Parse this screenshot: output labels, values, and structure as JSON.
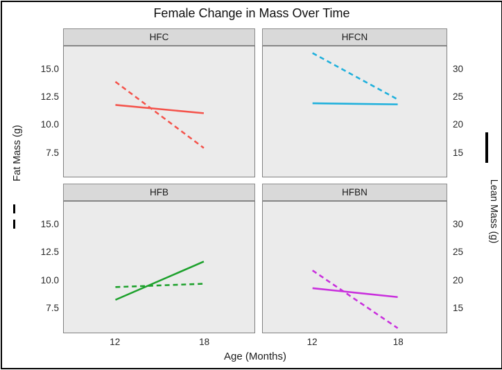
{
  "title": "Female Change in Mass Over Time",
  "axes": {
    "x": {
      "title": "Age (Months)",
      "tick_labels": [
        "12",
        "18"
      ],
      "tick_values": [
        12,
        18
      ]
    },
    "left": {
      "title": "Fat Mass (g)",
      "tick_labels": [
        "15.0",
        "12.5",
        "10.0",
        "7.5"
      ],
      "tick_values": [
        15.0,
        12.5,
        10.0,
        7.5
      ],
      "line_style": "dashed"
    },
    "right": {
      "title": "Lean Mass (g)",
      "tick_labels": [
        "30",
        "25",
        "20",
        "15"
      ],
      "tick_values": [
        30,
        25,
        20,
        15
      ],
      "line_style": "solid"
    }
  },
  "style": {
    "panel_bg": "#ebebeb",
    "strip_bg": "#d9d9d9",
    "outer_border": "#000000",
    "legend_glyph_color": "#000000"
  },
  "chart_data": {
    "type": "line",
    "title": "Female Change in Mass Over Time",
    "x": [
      12,
      18
    ],
    "xlabel": "Age (Months)",
    "ylabel_left": "Fat Mass (g)",
    "ylabel_right": "Lean Mass (g)",
    "left_axis_range": [
      5.3,
      17.1
    ],
    "right_axis_range": [
      10.6,
      34.2
    ],
    "right_axis_equals_left_times": 2,
    "grid": false,
    "legend": [
      {
        "name": "Fat Mass (g)",
        "style": "dashed",
        "position": "left-margin"
      },
      {
        "name": "Lean Mass (g)",
        "style": "solid",
        "position": "right-margin"
      }
    ],
    "facets": [
      {
        "label": "HFC",
        "color": "#f4534b",
        "series": [
          {
            "name": "Fat Mass (g)",
            "style": "dashed",
            "axis": "left",
            "values": [
              13.9,
              7.9
            ]
          },
          {
            "name": "Lean Mass (g)",
            "style": "solid",
            "axis": "right",
            "values": [
              23.6,
              22.1
            ]
          }
        ]
      },
      {
        "label": "HFCN",
        "color": "#1fb0dc",
        "series": [
          {
            "name": "Fat Mass (g)",
            "style": "dashed",
            "axis": "left",
            "values": [
              16.5,
              12.3
            ]
          },
          {
            "name": "Lean Mass (g)",
            "style": "solid",
            "axis": "right",
            "values": [
              23.9,
              23.7
            ]
          }
        ]
      },
      {
        "label": "HFB",
        "color": "#1da12c",
        "series": [
          {
            "name": "Fat Mass (g)",
            "style": "dashed",
            "axis": "left",
            "values": [
              9.4,
              9.7
            ]
          },
          {
            "name": "Lean Mass (g)",
            "style": "solid",
            "axis": "right",
            "values": [
              16.5,
              23.4
            ]
          }
        ]
      },
      {
        "label": "HFBN",
        "color": "#c92fdd",
        "series": [
          {
            "name": "Fat Mass (g)",
            "style": "dashed",
            "axis": "left",
            "values": [
              10.9,
              5.7
            ]
          },
          {
            "name": "Lean Mass (g)",
            "style": "solid",
            "axis": "right",
            "values": [
              18.6,
              17.0
            ]
          }
        ]
      }
    ]
  }
}
